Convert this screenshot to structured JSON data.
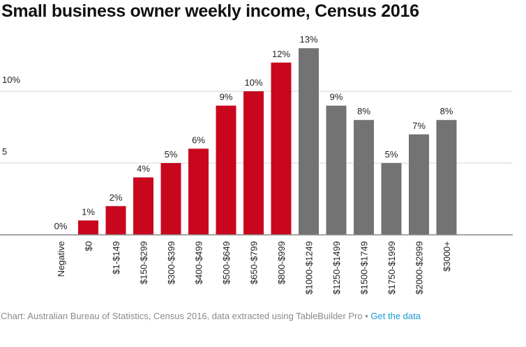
{
  "chart_data": {
    "type": "bar",
    "title": "Small business owner weekly income, Census 2016",
    "xlabel": "",
    "ylabel": "",
    "ylim": [
      0,
      13
    ],
    "yticks": [
      {
        "value": 5,
        "label": "5"
      },
      {
        "value": 10,
        "label": "10%"
      }
    ],
    "grid": true,
    "categories": [
      "Negative",
      "$0",
      "$1-$149",
      "$150-$299",
      "$300-$399",
      "$400-$499",
      "$500-$649",
      "$650-$799",
      "$800-$999",
      "$1000-$1249",
      "$1250-$1499",
      "$1500-$1749",
      "$1750-$1999",
      "$2000-$2999",
      "$3000+"
    ],
    "values": [
      0,
      1,
      2,
      4,
      5,
      6,
      9,
      10,
      12,
      13,
      9,
      8,
      5,
      7,
      8
    ],
    "data_labels": [
      "0%",
      "1%",
      "2%",
      "4%",
      "5%",
      "6%",
      "9%",
      "10%",
      "12%",
      "13%",
      "9%",
      "8%",
      "5%",
      "7%",
      "8%"
    ],
    "bar_colors": [
      "#c8071e",
      "#c8071e",
      "#c8071e",
      "#c8071e",
      "#c8071e",
      "#c8071e",
      "#c8071e",
      "#c8071e",
      "#c8071e",
      "#737373",
      "#737373",
      "#737373",
      "#737373",
      "#737373",
      "#737373"
    ]
  },
  "footer": {
    "source": "Chart: Australian Bureau of Statistics, Census 2016, data extracted using TableBuilder Pro",
    "separator": " • ",
    "link": "Get the data",
    "link_color": "#1a9ad6"
  }
}
